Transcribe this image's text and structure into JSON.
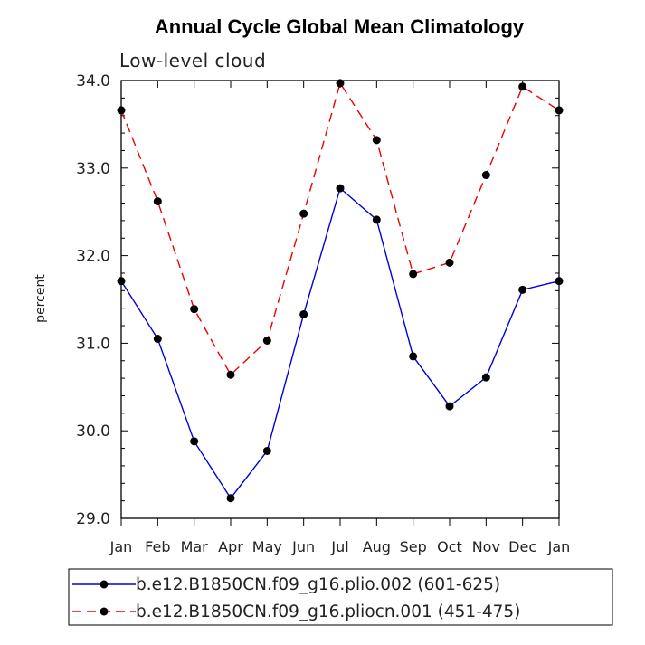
{
  "chart_data": {
    "type": "line",
    "title": "Annual Cycle Global Mean Climatology",
    "subtitle": "Low-level cloud",
    "xlabel": "",
    "ylabel": "percent",
    "ylim": [
      29.0,
      34.0
    ],
    "yticks": [
      "29.0",
      "30.0",
      "31.0",
      "32.0",
      "33.0",
      "34.0"
    ],
    "categories": [
      "Jan",
      "Feb",
      "Mar",
      "Apr",
      "May",
      "Jun",
      "Jul",
      "Aug",
      "Sep",
      "Oct",
      "Nov",
      "Dec",
      "Jan"
    ],
    "series": [
      {
        "name": "b.e12.B1850CN.f09_g16.plio.002 (601-625)",
        "color": "#0000dd",
        "dash": "solid",
        "values": [
          31.71,
          31.05,
          29.88,
          29.23,
          29.77,
          31.33,
          32.77,
          32.41,
          30.85,
          30.28,
          30.61,
          31.61,
          31.71
        ]
      },
      {
        "name": "b.e12.B1850CN.f09_g16.pliocn.001 (451-475)",
        "color": "#ee0000",
        "dash": "dashed",
        "values": [
          33.66,
          32.62,
          31.39,
          30.64,
          31.03,
          32.48,
          33.97,
          33.32,
          31.79,
          31.92,
          32.92,
          33.93,
          33.66
        ]
      }
    ],
    "legend_position": "bottom",
    "marker": "filled-circle"
  }
}
